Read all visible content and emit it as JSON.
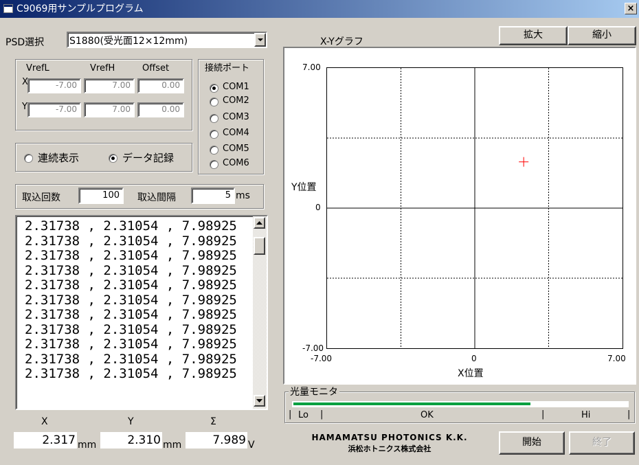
{
  "window": {
    "title": "C9069用サンプルプログラム",
    "close_glyph": "×"
  },
  "psd": {
    "label": "PSD選択",
    "selected": "S1880(受光面12×12mm)"
  },
  "ref_group": {
    "headers": [
      "VrefL",
      "VrefH",
      "Offset"
    ],
    "x_label": "X",
    "y_label": "Y",
    "x_values": [
      "-7.00",
      "7.00",
      "0.00"
    ],
    "y_values": [
      "-7.00",
      "7.00",
      "0.00"
    ]
  },
  "port_group": {
    "title": "接続ポート",
    "options": [
      "COM1",
      "COM2",
      "COM3",
      "COM4",
      "COM5",
      "COM6"
    ],
    "selected_index": 0
  },
  "mode_group": {
    "options": [
      "連続表示",
      "データ記録"
    ],
    "selected_index": 1
  },
  "acquire": {
    "count_label": "取込回数",
    "count_value": "100",
    "interval_label": "取込間隔",
    "interval_value": "5",
    "interval_unit": "ms"
  },
  "log_lines": [
    "2.31738 , 2.31054 , 7.98925",
    "2.31738 , 2.31054 , 7.98925",
    "2.31738 , 2.31054 , 7.98925",
    "2.31738 , 2.31054 , 7.98925",
    "2.31738 , 2.31054 , 7.98925",
    "2.31738 , 2.31054 , 7.98925",
    "2.31738 , 2.31054 , 7.98925",
    "2.31738 , 2.31054 , 7.98925",
    "2.31738 , 2.31054 , 7.98925",
    "2.31738 , 2.31054 , 7.98925",
    "2.31738 , 2.31054 , 7.98925"
  ],
  "readout": {
    "x_label": "X",
    "y_label": "Y",
    "sum_label": "Σ",
    "x_value": "2.317",
    "y_value": "2.310",
    "sum_value": "7.989",
    "x_unit": "mm",
    "y_unit": "mm",
    "sum_unit": "V"
  },
  "graph": {
    "title": "X-Yグラフ",
    "zoom_in": "拡大",
    "zoom_out": "縮小",
    "y_axis_label": "Y位置",
    "x_axis_label": "X位置",
    "x_ticks": [
      "-7.00",
      "0",
      "7.00"
    ],
    "y_ticks": [
      "7.00",
      "0",
      "-7.00"
    ],
    "marker_color": "#ff0000"
  },
  "chart_data": {
    "type": "scatter",
    "title": "X-Yグラフ",
    "xlabel": "X位置",
    "ylabel": "Y位置",
    "xlim": [
      -7.0,
      7.0
    ],
    "ylim": [
      -7.0,
      7.0
    ],
    "grid": true,
    "points": [
      {
        "x": 2.317,
        "y": 2.31
      }
    ]
  },
  "monitor": {
    "title": "光量モニタ",
    "lo": "Lo",
    "ok": "OK",
    "hi": "Hi",
    "level": 0.71,
    "bar_color": "#00a040"
  },
  "logo": {
    "line1": "HAMAMATSU PHOTONICS K.K.",
    "line2": "浜松ホトニクス株式会社"
  },
  "buttons": {
    "start": "開始",
    "end": "終了"
  }
}
